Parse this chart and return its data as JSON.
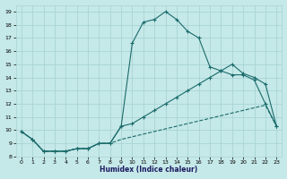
{
  "xlabel": "Humidex (Indice chaleur)",
  "bg_color": "#c5e8e8",
  "grid_color": "#aad4d4",
  "line_color": "#1a6b6b",
  "xlim": [
    -0.5,
    23.5
  ],
  "ylim": [
    8,
    19.5
  ],
  "xticks": [
    0,
    1,
    2,
    3,
    4,
    5,
    6,
    7,
    8,
    9,
    10,
    11,
    12,
    13,
    14,
    15,
    16,
    17,
    18,
    19,
    20,
    21,
    22,
    23
  ],
  "yticks": [
    8,
    9,
    10,
    11,
    12,
    13,
    14,
    15,
    16,
    17,
    18,
    19
  ],
  "line1_x": [
    0,
    1,
    2,
    3,
    4,
    5,
    6,
    7,
    8,
    9,
    10,
    11,
    12,
    13,
    14,
    15,
    16,
    17,
    18,
    19,
    20,
    21,
    22,
    23
  ],
  "line1_y": [
    9.9,
    9.3,
    8.4,
    8.4,
    8.4,
    8.6,
    8.6,
    9.0,
    9.0,
    9.3,
    9.5,
    9.7,
    9.9,
    10.1,
    10.3,
    10.5,
    10.7,
    10.9,
    11.1,
    11.3,
    11.5,
    11.7,
    11.9,
    10.3
  ],
  "line2_x": [
    0,
    1,
    2,
    3,
    4,
    5,
    6,
    7,
    8,
    9,
    10,
    11,
    12,
    13,
    14,
    15,
    16,
    17,
    18,
    19,
    20,
    21,
    22,
    23
  ],
  "line2_y": [
    9.9,
    9.3,
    8.4,
    8.4,
    8.4,
    8.6,
    8.6,
    9.0,
    9.0,
    10.3,
    10.5,
    11.0,
    11.5,
    12.0,
    12.5,
    13.0,
    13.5,
    14.0,
    14.5,
    15.0,
    14.3,
    14.0,
    13.5,
    10.3
  ],
  "line3_x": [
    0,
    1,
    2,
    3,
    4,
    5,
    6,
    7,
    8,
    9,
    10,
    11,
    12,
    13,
    14,
    15,
    16,
    17,
    18,
    19,
    20,
    21,
    22,
    23
  ],
  "line3_y": [
    9.9,
    9.3,
    8.4,
    8.4,
    8.4,
    8.6,
    8.6,
    9.0,
    9.0,
    10.3,
    16.6,
    18.2,
    18.4,
    19.0,
    18.4,
    17.5,
    17.0,
    14.8,
    14.5,
    14.2,
    14.2,
    13.8,
    12.0,
    10.3
  ]
}
